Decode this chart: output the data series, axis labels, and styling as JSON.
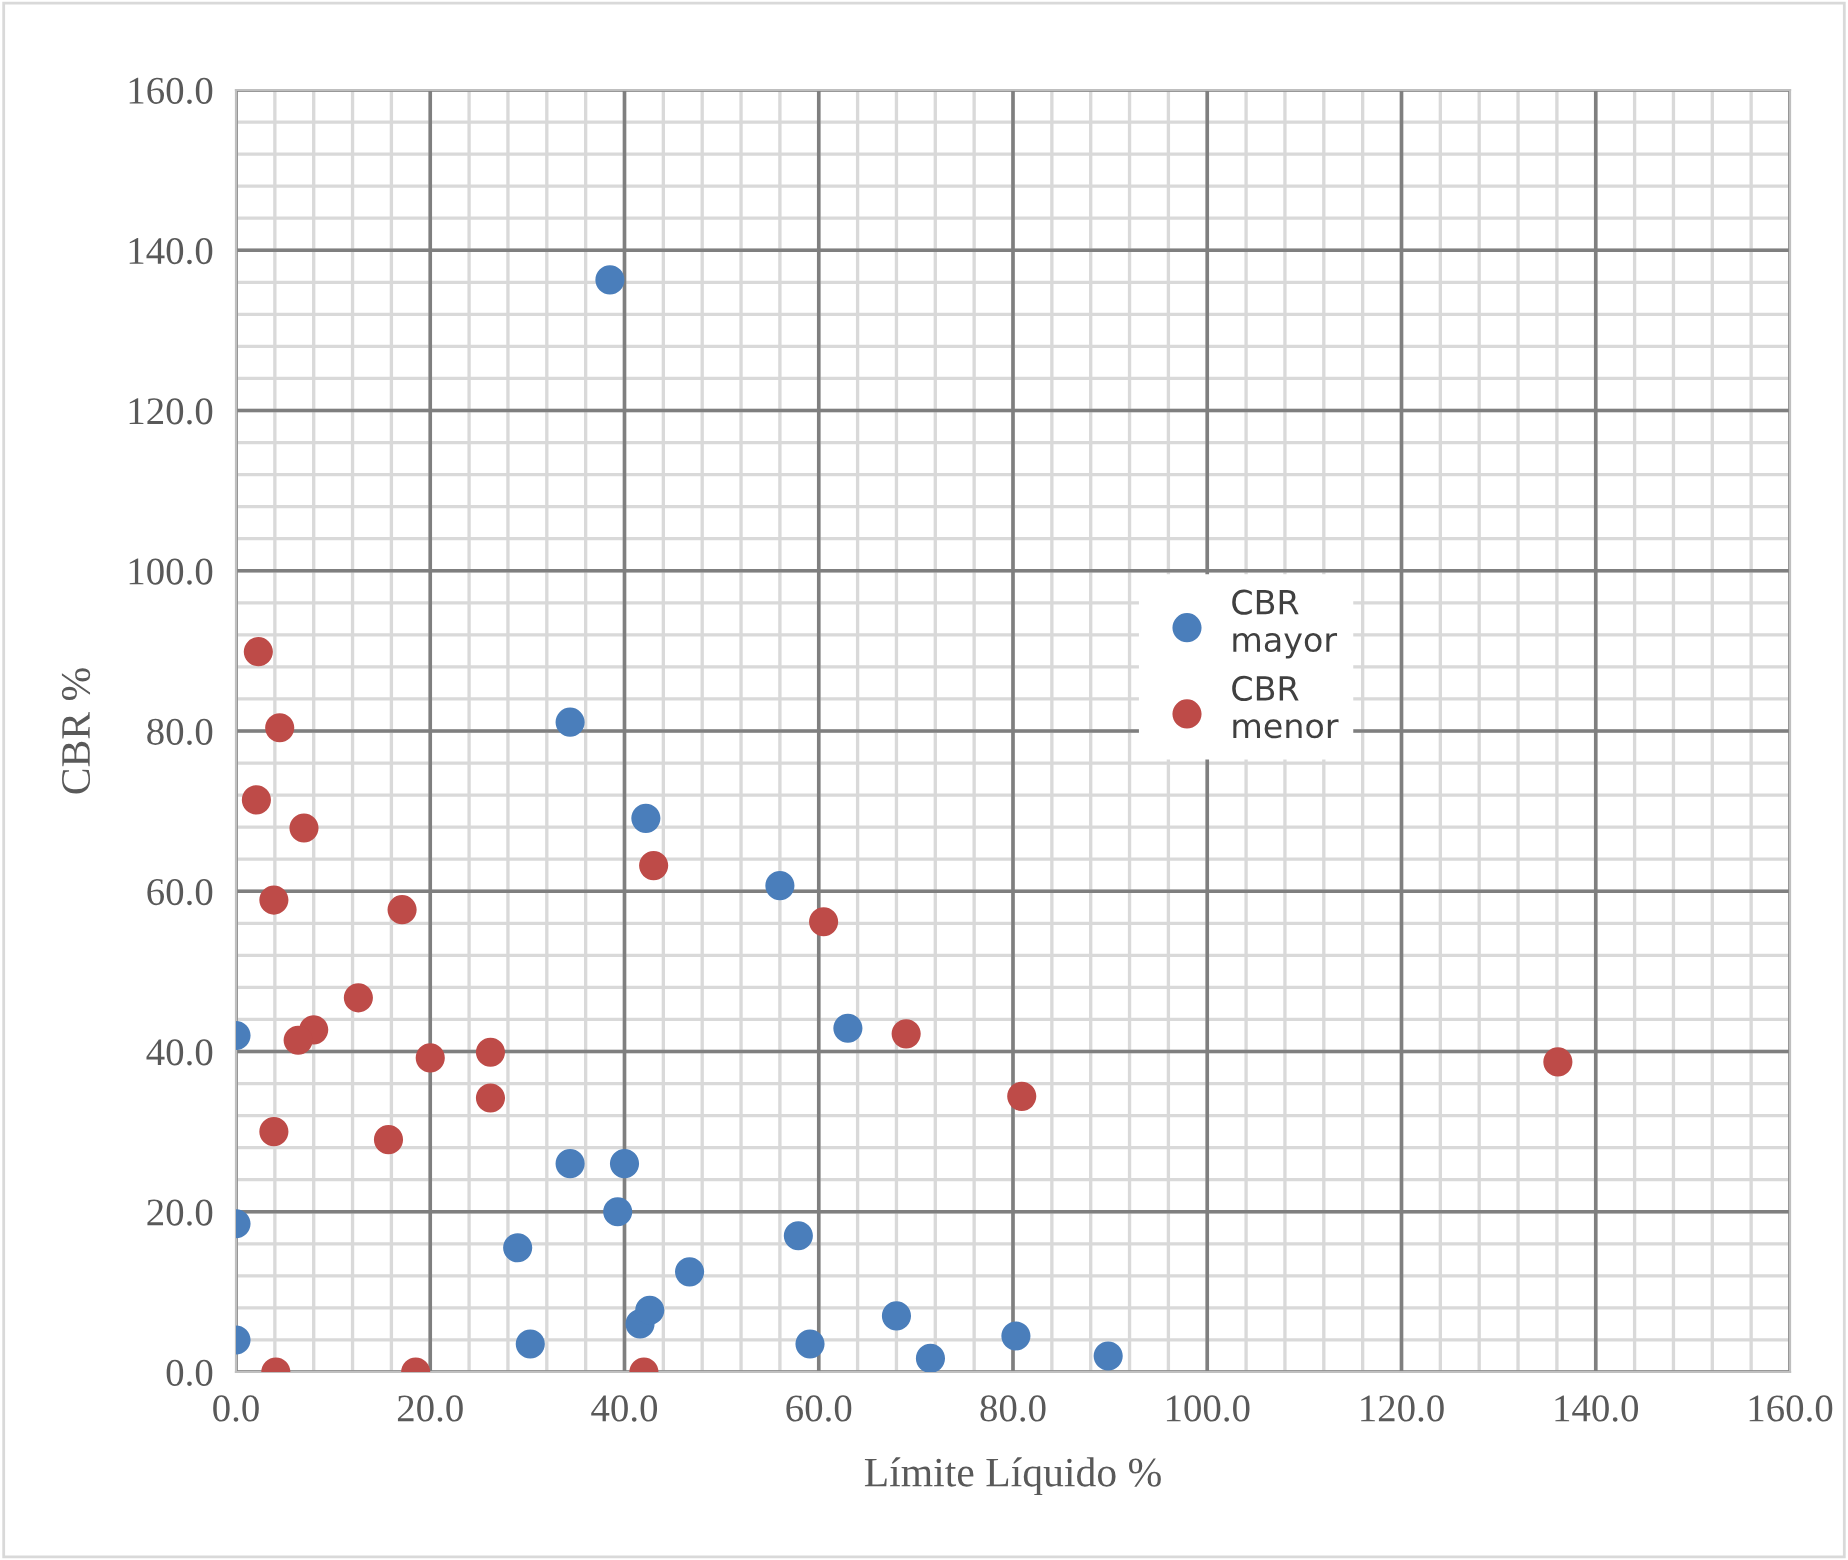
{
  "chart_data": {
    "type": "scatter",
    "xlabel": "Límite Líquido %",
    "ylabel": "CBR %",
    "xlim": [
      0,
      160
    ],
    "ylim": [
      0,
      160
    ],
    "xticks": [
      {
        "value": 0,
        "label": "0.0"
      },
      {
        "value": 20,
        "label": "20.0"
      },
      {
        "value": 40,
        "label": "40.0"
      },
      {
        "value": 60,
        "label": "60.0"
      },
      {
        "value": 80,
        "label": "80.0"
      },
      {
        "value": 100,
        "label": "100.0"
      },
      {
        "value": 120,
        "label": "120.0"
      },
      {
        "value": 140,
        "label": "140.0"
      },
      {
        "value": 160,
        "label": "160.0"
      }
    ],
    "yticks": [
      {
        "value": 0,
        "label": "0.0"
      },
      {
        "value": 20,
        "label": "20.0"
      },
      {
        "value": 40,
        "label": "40.0"
      },
      {
        "value": 60,
        "label": "60.0"
      },
      {
        "value": 80,
        "label": "80.0"
      },
      {
        "value": 100,
        "label": "100.0"
      },
      {
        "value": 120,
        "label": "120.0"
      },
      {
        "value": 140,
        "label": "140.0"
      },
      {
        "value": 160,
        "label": "160.0"
      }
    ],
    "grid": true,
    "legend": "center",
    "marker": "circle",
    "series": [
      {
        "name": "CBR mayor",
        "color": "#4a7ebb",
        "x": [
          0,
          0,
          0,
          38.5,
          34.4,
          42.2,
          56.0,
          63.0,
          34.4,
          40.0,
          39.3,
          29.0,
          46.7,
          57.9,
          30.3,
          41.6,
          42.6,
          59.1,
          68.0,
          71.5,
          80.3,
          89.8
        ],
        "values": [
          42,
          18.5,
          4,
          136.3,
          81.1,
          69.1,
          60.7,
          42.9,
          26,
          26,
          20,
          15.5,
          12.5,
          17,
          3.5,
          6,
          7.7,
          3.5,
          7,
          1.7,
          4.5,
          2
        ]
      },
      {
        "name": "CBR menor",
        "color": "#be4b48",
        "x": [
          2.3,
          4.5,
          2.1,
          7.0,
          3.9,
          17.1,
          12.6,
          8.0,
          6.4,
          20.0,
          26.2,
          26.2,
          3.9,
          15.7,
          4.1,
          18.5,
          42.0,
          43.0,
          60.5,
          69.0,
          80.9,
          136.1
        ],
        "values": [
          89.9,
          80.4,
          71.4,
          67.9,
          58.9,
          57.7,
          46.7,
          42.7,
          41.4,
          39.2,
          39.9,
          34.2,
          30,
          29,
          0,
          0,
          0,
          63.2,
          56.2,
          42.2,
          34.4,
          38.7
        ]
      }
    ]
  }
}
